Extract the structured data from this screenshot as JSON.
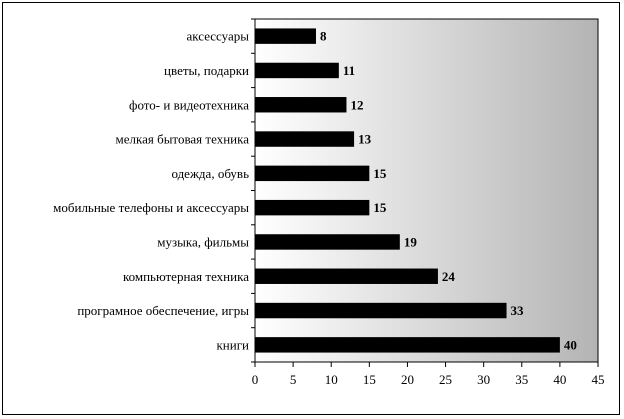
{
  "chart_data": {
    "type": "bar",
    "orientation": "horizontal",
    "categories": [
      "аксессуары",
      "цветы, подарки",
      "фото- и видеотехника",
      "мелкая бытовая техника",
      "одежда, обувь",
      "мобильные телефоны и аксессуары",
      "музыка, фильмы",
      "компьютерная техника",
      "програмное обеспечение, игры",
      "книги"
    ],
    "values": [
      8,
      11,
      12,
      13,
      15,
      15,
      19,
      24,
      33,
      40
    ],
    "data_labels": [
      "8",
      "11",
      "12",
      "13",
      "15",
      "15",
      "19",
      "24",
      "33",
      "40"
    ],
    "title": "",
    "xlabel": "",
    "ylabel": "",
    "xlim": [
      0,
      45
    ],
    "x_ticks": [
      0,
      5,
      10,
      15,
      20,
      25,
      30,
      35,
      40,
      45
    ],
    "grid": false,
    "legend": "none",
    "colors": {
      "bar": "#000000",
      "plot_background_left": "#ffffff",
      "plot_background_right": "#b4b4b4"
    }
  }
}
